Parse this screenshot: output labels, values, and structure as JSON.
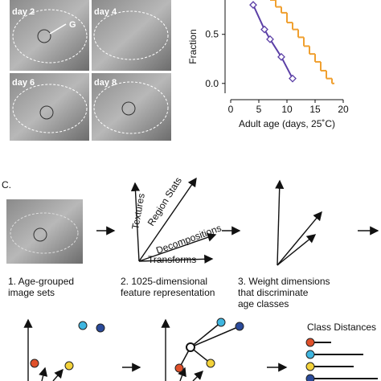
{
  "micrographs": {
    "labels": [
      "day 2",
      "day 4",
      "day 6",
      "day 8"
    ],
    "marker": "G"
  },
  "chart_data": {
    "type": "line",
    "ylabel": "Fraction",
    "xlabel": "Adult age (days, 25˚C)",
    "xlim": [
      0,
      20
    ],
    "xticks": [
      0,
      5,
      10,
      15,
      20
    ],
    "ylim": [
      -0.1,
      0.85
    ],
    "yticks": [
      {
        "value": 0,
        "label": "0.0"
      },
      {
        "value": 0.5,
        "label": "0.5"
      }
    ],
    "series": [
      {
        "color": "#5b3fa6",
        "marker": "diamond",
        "step": false,
        "x": [
          4,
          6,
          7,
          9,
          11
        ],
        "values": [
          0.8,
          0.55,
          0.45,
          0.27,
          0.05
        ]
      },
      {
        "color": "#f0a030",
        "step": true,
        "x": [
          7,
          8,
          9,
          10,
          11,
          12,
          13,
          14,
          15,
          16,
          17,
          18
        ],
        "values": [
          0.85,
          0.78,
          0.72,
          0.62,
          0.55,
          0.47,
          0.38,
          0.3,
          0.22,
          0.13,
          0.05,
          0
        ]
      }
    ]
  },
  "pipeline": {
    "label": "C.",
    "features": [
      "Textures",
      "Region Stats",
      "Decompositions",
      "Transforms"
    ],
    "captions": [
      [
        "1. Age-grouped",
        "image sets"
      ],
      [
        "2. 1025-dimensional",
        "feature representation"
      ],
      [
        "3. Weight dimensions",
        "that discriminate",
        "age classes"
      ]
    ],
    "distances_title": "Class Distances"
  }
}
